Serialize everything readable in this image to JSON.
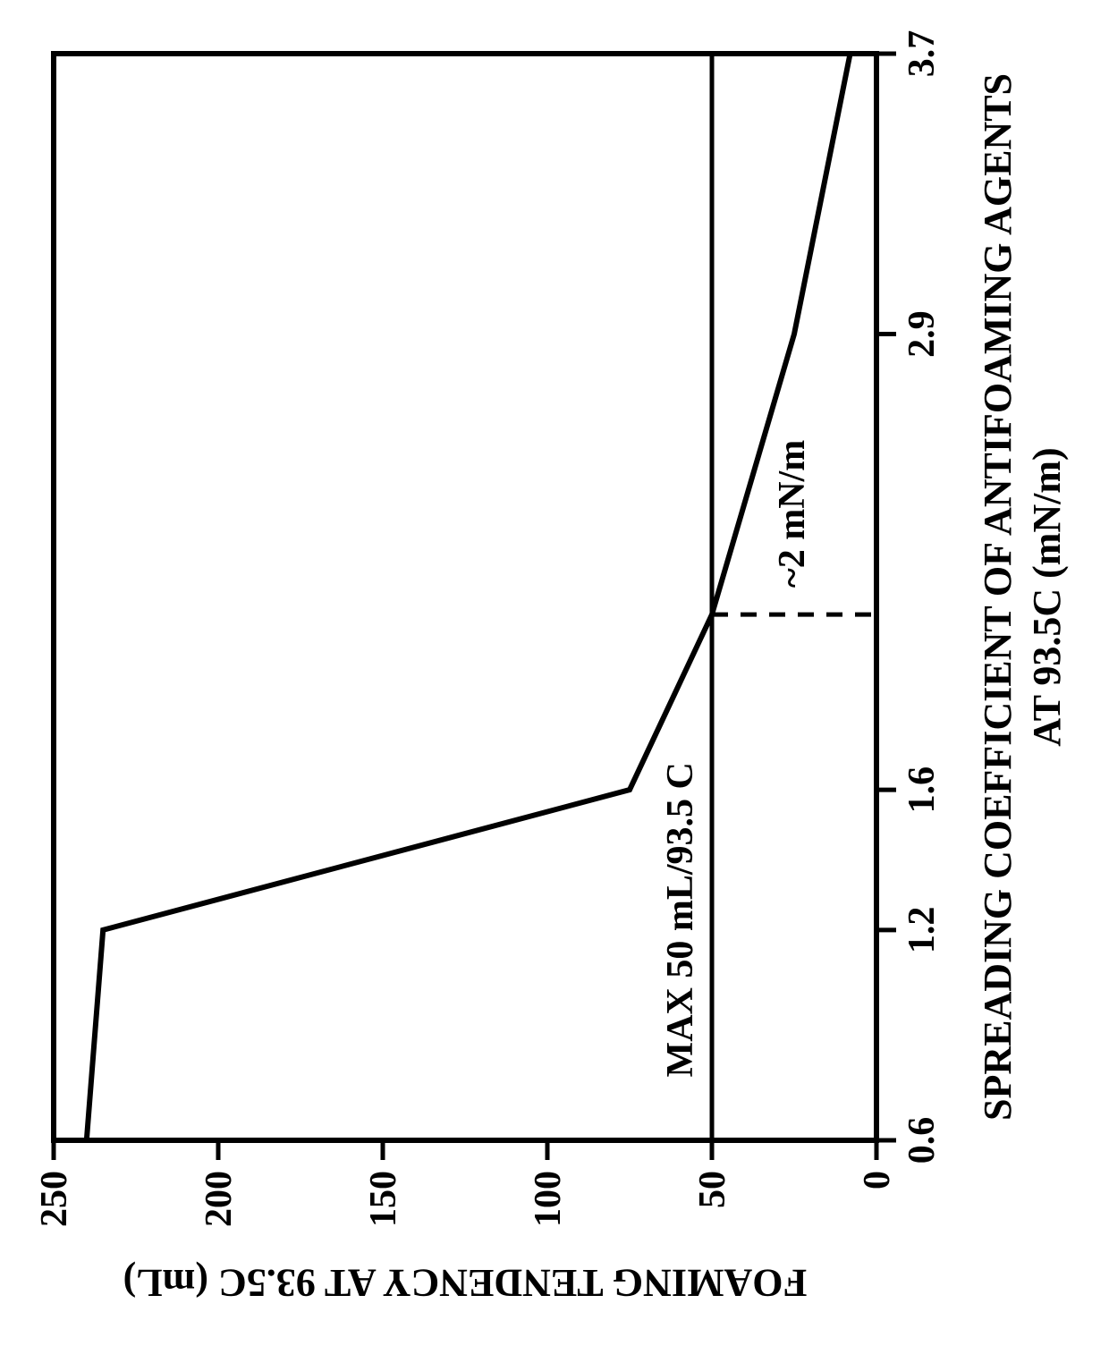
{
  "chart": {
    "type": "line",
    "rotated_ccw_90": true,
    "background_color": "#ffffff",
    "line_color": "#000000",
    "line_width_main": 6,
    "line_width_frame": 6,
    "line_width_ref": 5,
    "dash_pattern": "18 14",
    "font_family": "Times New Roman",
    "font_weight": "bold",
    "tick_fontsize": 42,
    "axis_label_fontsize": 44,
    "annotation_fontsize": 42,
    "x_axis": {
      "label_line1": "SPREADING COEFFICIENT OF ANTIFOAMING AGENTS",
      "label_line2": "AT 93.5C (mN/m)",
      "min": 0.6,
      "max": 3.7,
      "ticks": [
        0.6,
        1.2,
        1.6,
        2.9,
        3.7
      ],
      "tick_labels": [
        "0.6",
        "1.2",
        "1.6",
        "2.9",
        "3.7"
      ]
    },
    "y_axis": {
      "label": "FOAMING TENDENCY AT 93.5C (mL)",
      "min": 0,
      "max": 250,
      "ticks": [
        0,
        50,
        100,
        150,
        200,
        250
      ],
      "tick_labels": [
        "0",
        "50",
        "100",
        "150",
        "200",
        "250"
      ]
    },
    "series": {
      "points": [
        {
          "x": 0.6,
          "y": 240
        },
        {
          "x": 1.2,
          "y": 235
        },
        {
          "x": 1.6,
          "y": 75
        },
        {
          "x": 2.1,
          "y": 50
        },
        {
          "x": 2.9,
          "y": 25
        },
        {
          "x": 3.7,
          "y": 8
        }
      ]
    },
    "reference": {
      "y_value": 50,
      "intersection_x": 2.1
    },
    "annotations": {
      "max50": "MAX 50 mL/93.5 C",
      "approx2": "~2 mN/m"
    }
  }
}
